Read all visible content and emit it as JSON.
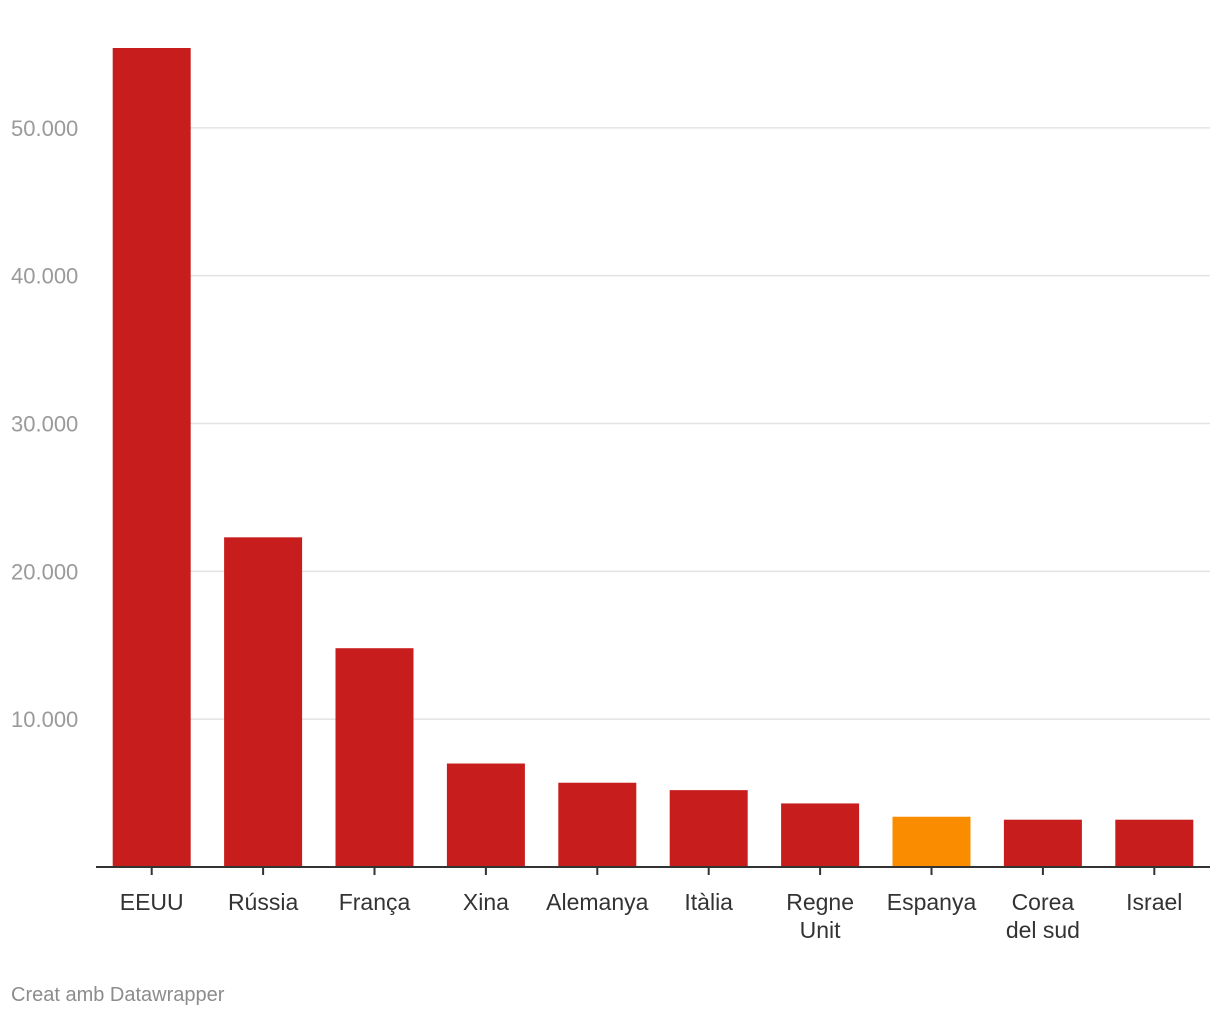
{
  "chart_data": {
    "type": "bar",
    "categories": [
      "EEUU",
      "Rússia",
      "França",
      "Xina",
      "Alemanya",
      "Itàlia",
      "Regne Unit",
      "Espanya",
      "Corea del sud",
      "Israel"
    ],
    "category_lines": [
      [
        "EEUU"
      ],
      [
        "Rússia"
      ],
      [
        "França"
      ],
      [
        "Xina"
      ],
      [
        "Alemanya"
      ],
      [
        "Itàlia"
      ],
      [
        "Regne",
        "Unit"
      ],
      [
        "Espanya"
      ],
      [
        "Corea",
        "del sud"
      ],
      [
        "Israel"
      ]
    ],
    "values": [
      55400,
      22300,
      14800,
      7000,
      5700,
      5200,
      4300,
      3400,
      3200,
      3200
    ],
    "highlight_category": "Espanya",
    "colors": {
      "default": "#c71e1d",
      "highlight": "#fa8c00",
      "grid": "#e3e3e3",
      "axis": "#333333"
    },
    "yticks": [
      10000,
      20000,
      30000,
      40000,
      50000
    ],
    "ytick_labels": [
      "10.000",
      "20.000",
      "30.000",
      "40.000",
      "50.000"
    ],
    "ylim": [
      0,
      55400
    ],
    "grid": true,
    "title": "",
    "xlabel": "",
    "ylabel": ""
  },
  "footer": {
    "credit": "Creat amb Datawrapper"
  }
}
